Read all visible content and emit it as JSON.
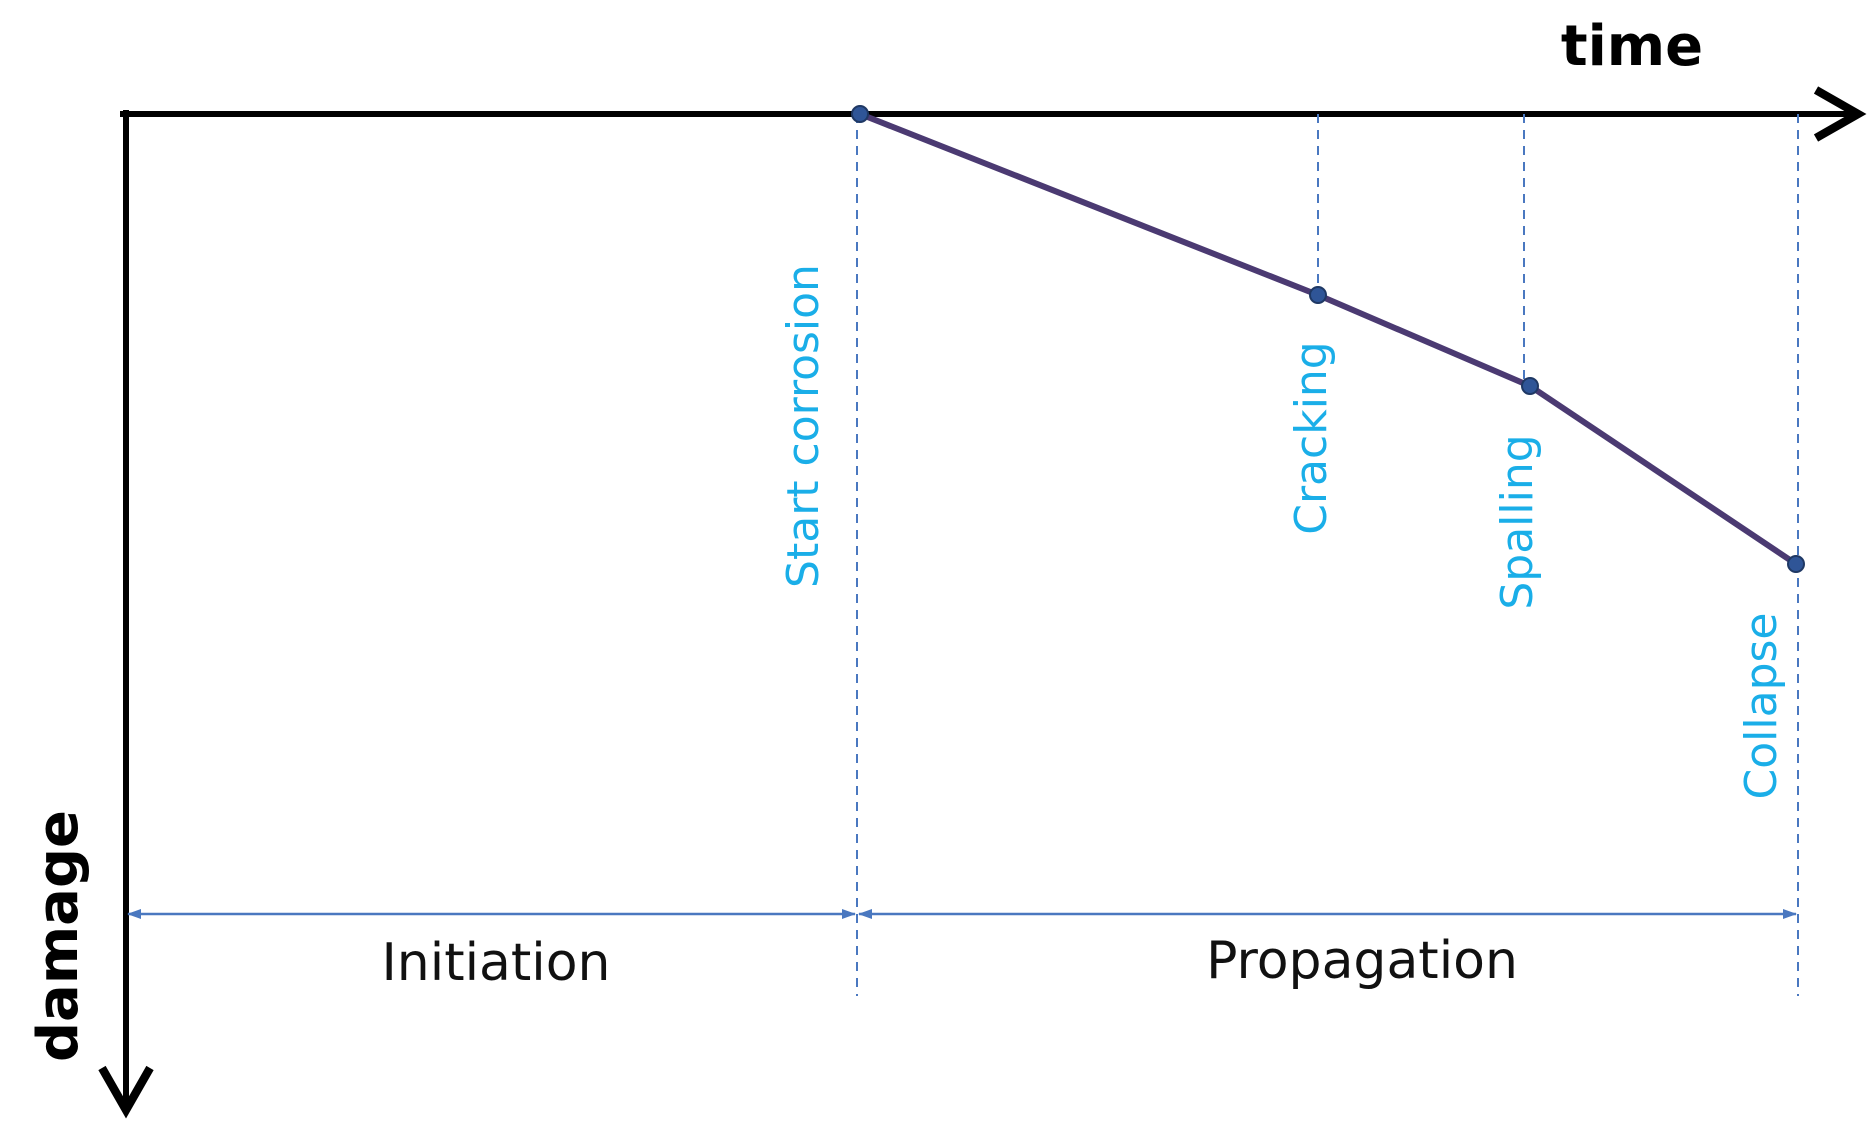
{
  "axes": {
    "x_label": "time",
    "y_label": "damage"
  },
  "milestones": [
    {
      "label": "Start corrosion"
    },
    {
      "label": "Cracking"
    },
    {
      "label": "Spalling"
    },
    {
      "label": "Collapse"
    }
  ],
  "phases": [
    {
      "label": "Initiation"
    },
    {
      "label": "Propagation"
    }
  ]
}
